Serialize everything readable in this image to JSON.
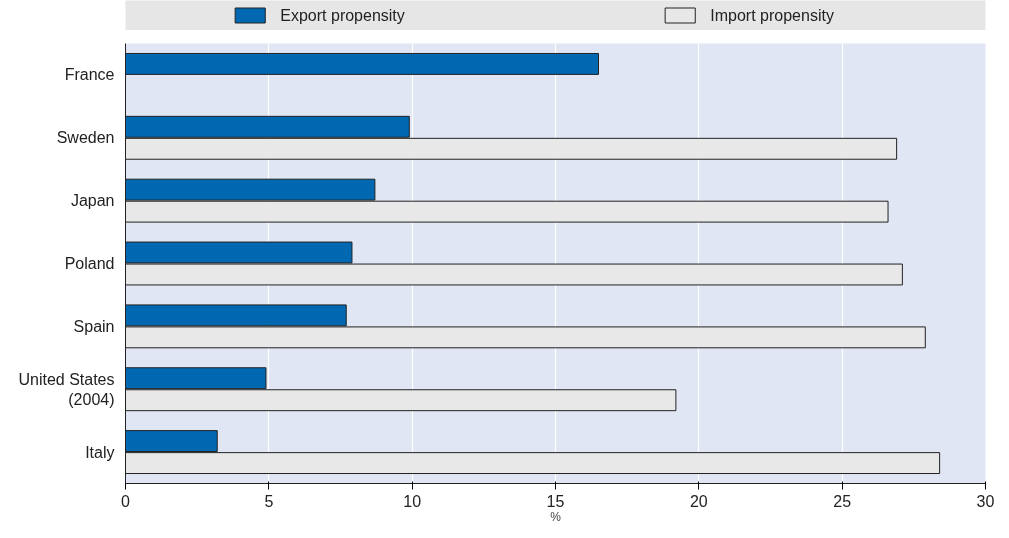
{
  "chart_data": {
    "type": "bar",
    "orientation": "horizontal",
    "xlabel": "%",
    "categories": [
      "France",
      "Sweden",
      "Japan",
      "Poland",
      "Spain",
      "United States\n(2004)",
      "Italy"
    ],
    "series": [
      {
        "name": "Export propensity",
        "color": "#0068b0",
        "values": [
          16.5,
          9.9,
          8.7,
          7.9,
          7.7,
          4.9,
          3.2
        ]
      },
      {
        "name": "Import propensity",
        "color": "#e8e8e8",
        "values": [
          null,
          26.9,
          26.6,
          27.1,
          27.9,
          19.2,
          28.4
        ]
      }
    ],
    "xlim": [
      0,
      30
    ],
    "xticks": [
      0,
      5,
      10,
      15,
      20,
      25,
      30
    ],
    "grid": "x",
    "legend": "top"
  }
}
